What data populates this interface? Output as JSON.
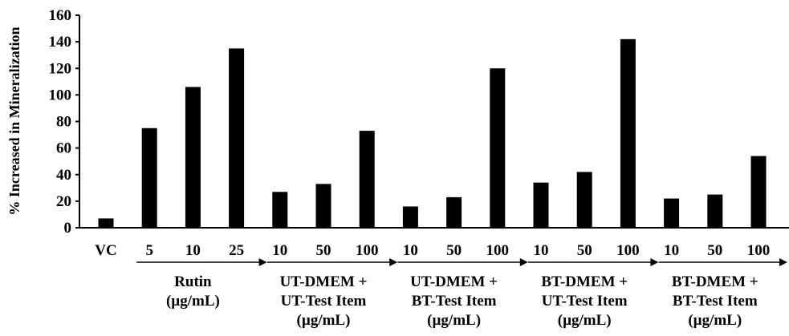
{
  "chart_data": {
    "type": "bar",
    "ylabel": "% Increased in Mineralization",
    "xlabel": "",
    "ylim": [
      0,
      160
    ],
    "yticks": [
      0,
      20,
      40,
      60,
      80,
      100,
      120,
      140,
      160
    ],
    "grid": false,
    "bar_color": "#000000",
    "categories": [
      "VC",
      "5",
      "10",
      "25",
      "10",
      "50",
      "100",
      "10",
      "50",
      "100",
      "10",
      "50",
      "100",
      "10",
      "50",
      "100"
    ],
    "values": [
      7,
      75,
      106,
      135,
      27,
      33,
      73,
      16,
      23,
      120,
      34,
      42,
      142,
      22,
      25,
      54
    ],
    "groups": [
      {
        "lines": [
          "Rutin",
          "(µg/mL)"
        ]
      },
      {
        "lines": [
          "UT-DMEM +",
          "UT-Test Item",
          "(µg/mL)"
        ]
      },
      {
        "lines": [
          "UT-DMEM +",
          "BT-Test Item",
          "(µg/mL)"
        ]
      },
      {
        "lines": [
          "BT-DMEM +",
          "UT-Test Item",
          "(µg/mL)"
        ]
      },
      {
        "lines": [
          "BT-DMEM +",
          "BT-Test Item",
          "(µg/mL)"
        ]
      }
    ]
  }
}
